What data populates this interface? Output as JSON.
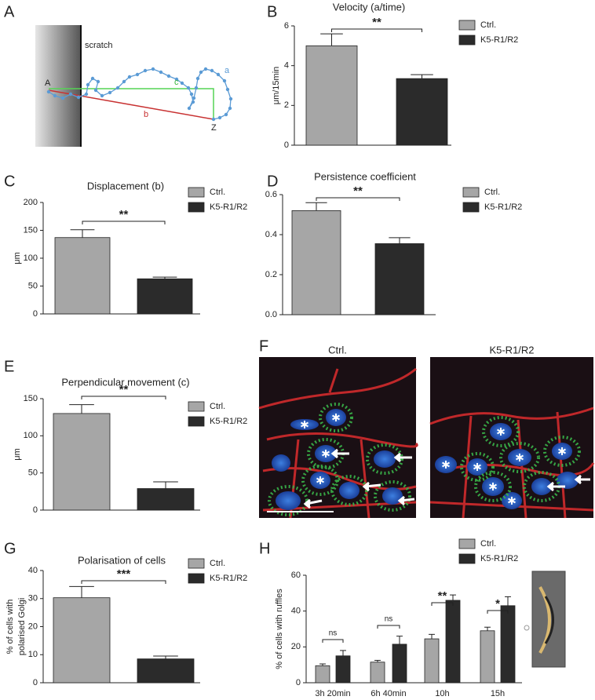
{
  "panel_labels": [
    "A",
    "B",
    "C",
    "D",
    "E",
    "F",
    "G",
    "H"
  ],
  "panel_a": {
    "scratch": "scratch",
    "start": "A",
    "end": "Z",
    "track_labels": [
      "a",
      "b",
      "c"
    ]
  },
  "panel_f": {
    "labels": [
      "Ctrl.",
      "K5-R1/R2"
    ]
  },
  "chart_data": [
    {
      "type": "bar",
      "title": "Velocity (a/time)",
      "y_label": "μm/15min",
      "categories": [
        null
      ],
      "series": [
        {
          "name": "Ctrl.",
          "color": "#a6a6a6",
          "values": [
            5.0
          ],
          "errors": [
            0.6
          ]
        },
        {
          "name": "K5-R1/R2",
          "color": "#2b2b2b",
          "values": [
            3.35
          ],
          "errors": [
            0.2
          ]
        }
      ],
      "ylim": [
        0,
        6
      ],
      "yticks": [
        0,
        2,
        4,
        6
      ],
      "annotations": [
        "**"
      ]
    },
    {
      "type": "bar",
      "title": "Displacement (b)",
      "y_label": "μm",
      "categories": [
        null
      ],
      "series": [
        {
          "name": "Ctrl.",
          "color": "#a6a6a6",
          "values": [
            137
          ],
          "errors": [
            14
          ]
        },
        {
          "name": "K5-R1/R2",
          "color": "#2b2b2b",
          "values": [
            63
          ],
          "errors": [
            3
          ]
        }
      ],
      "ylim": [
        0,
        200
      ],
      "yticks": [
        0,
        50,
        100,
        150,
        200
      ],
      "annotations": [
        "**"
      ]
    },
    {
      "type": "bar",
      "title": "Persistence coefficient",
      "categories": [
        null
      ],
      "series": [
        {
          "name": "Ctrl.",
          "color": "#a6a6a6",
          "values": [
            0.52
          ],
          "errors": [
            0.04
          ]
        },
        {
          "name": "K5-R1/R2",
          "color": "#2b2b2b",
          "values": [
            0.355
          ],
          "errors": [
            0.03
          ]
        }
      ],
      "ylim": [
        0,
        0.6
      ],
      "yticks": [
        {
          "value": 0,
          "label": "0.0"
        },
        0.2,
        0.4,
        0.6
      ],
      "annotations": [
        "**"
      ]
    },
    {
      "type": "bar",
      "title": "Perpendicular movement (c)",
      "y_label": "μm",
      "categories": [
        null
      ],
      "series": [
        {
          "name": "Ctrl.",
          "color": "#a6a6a6",
          "values": [
            130
          ],
          "errors": [
            12
          ]
        },
        {
          "name": "K5-R1/R2",
          "color": "#2b2b2b",
          "values": [
            29
          ],
          "errors": [
            9
          ]
        }
      ],
      "ylim": [
        0,
        150
      ],
      "yticks": [
        0,
        50,
        100,
        150
      ],
      "annotations": [
        "**"
      ]
    },
    {
      "type": "bar",
      "title": "Polarisation of cells",
      "y_label": [
        "% of cells with",
        "polarised Golgi"
      ],
      "categories": [
        null
      ],
      "series": [
        {
          "name": "Ctrl.",
          "color": "#a6a6a6",
          "values": [
            30.3
          ],
          "errors": [
            4
          ]
        },
        {
          "name": "K5-R1/R2",
          "color": "#2b2b2b",
          "values": [
            8.5
          ],
          "errors": [
            1
          ]
        }
      ],
      "ylim": [
        0,
        40
      ],
      "yticks": [
        0,
        10,
        20,
        30,
        40
      ],
      "annotations": [
        "***"
      ]
    },
    {
      "type": "bar",
      "y_label": "% of cells with ruffles",
      "categories": [
        "3h 20min",
        "6h 40min",
        "10h",
        "15h"
      ],
      "series": [
        {
          "name": "Ctrl.",
          "color": "#a6a6a6",
          "values": [
            9.5,
            11.5,
            24.5,
            29
          ],
          "errors": [
            1,
            1,
            2.5,
            2
          ]
        },
        {
          "name": "K5-R1/R2",
          "color": "#2b2b2b",
          "values": [
            15,
            21.5,
            46,
            43
          ],
          "errors": [
            3,
            4.5,
            3,
            5
          ]
        }
      ],
      "ylim": [
        0,
        60
      ],
      "yticks": [
        0,
        20,
        40,
        60
      ],
      "annotations": [
        "ns",
        "ns",
        "**",
        "*"
      ]
    }
  ]
}
